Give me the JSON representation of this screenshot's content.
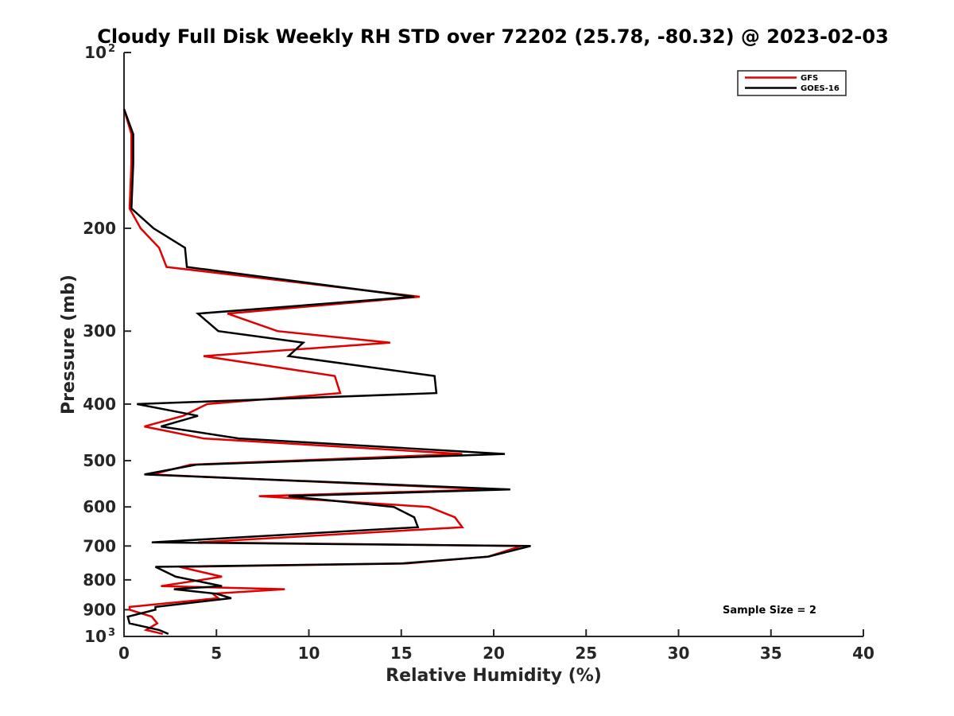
{
  "chart_data": {
    "type": "line",
    "title": "Cloudy Full Disk Weekly RH STD over 72202 (25.78, -80.32) @ 2023-02-03",
    "xlabel": "Relative Humidity (%)",
    "ylabel": "Pressure (mb)",
    "xlim": [
      0,
      40
    ],
    "ylim": [
      100,
      1000
    ],
    "y_scale": "log",
    "y_reversed": true,
    "x_ticks": [
      0,
      5,
      10,
      15,
      20,
      25,
      30,
      35,
      40
    ],
    "x_tick_labels": [
      "0",
      "5",
      "10",
      "15",
      "20",
      "25",
      "30",
      "35",
      "40"
    ],
    "y_ticks": [
      200,
      300,
      400,
      500,
      600,
      700,
      800,
      900
    ],
    "y_tick_labels": [
      "200",
      "300",
      "400",
      "500",
      "600",
      "700",
      "800",
      "900"
    ],
    "y_end_ticks": [
      {
        "value": 100,
        "base": "10",
        "exp": "2"
      },
      {
        "value": 1000,
        "base": "10",
        "exp": "3"
      }
    ],
    "grid": false,
    "legend_position": "top-right",
    "annotation": "Sample Size = 2",
    "series": [
      {
        "name": "GFS",
        "color": "#e00000",
        "points": [
          [
            0.0,
            125
          ],
          [
            0.4,
            138
          ],
          [
            0.4,
            155
          ],
          [
            0.3,
            185
          ],
          [
            0.9,
            200
          ],
          [
            1.9,
            216
          ],
          [
            2.3,
            233
          ],
          [
            16.0,
            262
          ],
          [
            5.6,
            280
          ],
          [
            8.3,
            300
          ],
          [
            14.4,
            314
          ],
          [
            4.3,
            331
          ],
          [
            11.4,
            358
          ],
          [
            11.7,
            383
          ],
          [
            4.5,
            400
          ],
          [
            3.2,
            419
          ],
          [
            1.1,
            437
          ],
          [
            4.3,
            458
          ],
          [
            18.3,
            487
          ],
          [
            3.6,
            508
          ],
          [
            1.5,
            528
          ],
          [
            19.8,
            560
          ],
          [
            7.3,
            575
          ],
          [
            16.5,
            600
          ],
          [
            17.9,
            625
          ],
          [
            18.3,
            650
          ],
          [
            4.0,
            690
          ],
          [
            21.5,
            700
          ],
          [
            19.7,
            730
          ],
          [
            15.3,
            750
          ],
          [
            3.0,
            760
          ],
          [
            5.3,
            790
          ],
          [
            2.0,
            820
          ],
          [
            8.7,
            830
          ],
          [
            4.8,
            845
          ],
          [
            5.1,
            860
          ],
          [
            0.3,
            890
          ],
          [
            0.3,
            900
          ],
          [
            1.5,
            925
          ],
          [
            1.8,
            950
          ],
          [
            1.2,
            975
          ],
          [
            2.1,
            990
          ]
        ]
      },
      {
        "name": "GOES-16",
        "color": "#000000",
        "points": [
          [
            0.0,
            125
          ],
          [
            0.5,
            138
          ],
          [
            0.5,
            155
          ],
          [
            0.4,
            185
          ],
          [
            1.6,
            200
          ],
          [
            3.3,
            216
          ],
          [
            3.4,
            233
          ],
          [
            15.7,
            262
          ],
          [
            4.0,
            280
          ],
          [
            5.1,
            300
          ],
          [
            9.7,
            314
          ],
          [
            8.9,
            331
          ],
          [
            16.8,
            358
          ],
          [
            16.9,
            383
          ],
          [
            0.7,
            400
          ],
          [
            4.0,
            419
          ],
          [
            2.0,
            437
          ],
          [
            6.2,
            458
          ],
          [
            20.6,
            487
          ],
          [
            3.9,
            508
          ],
          [
            1.1,
            528
          ],
          [
            20.9,
            560
          ],
          [
            8.9,
            575
          ],
          [
            14.6,
            600
          ],
          [
            15.7,
            625
          ],
          [
            15.9,
            650
          ],
          [
            1.5,
            690
          ],
          [
            22.0,
            700
          ],
          [
            19.7,
            730
          ],
          [
            15.0,
            750
          ],
          [
            1.7,
            760
          ],
          [
            2.8,
            790
          ],
          [
            5.3,
            820
          ],
          [
            2.7,
            830
          ],
          [
            5.0,
            845
          ],
          [
            5.8,
            860
          ],
          [
            1.7,
            890
          ],
          [
            1.7,
            900
          ],
          [
            0.2,
            925
          ],
          [
            0.3,
            950
          ],
          [
            1.9,
            975
          ],
          [
            2.4,
            990
          ]
        ]
      }
    ]
  }
}
